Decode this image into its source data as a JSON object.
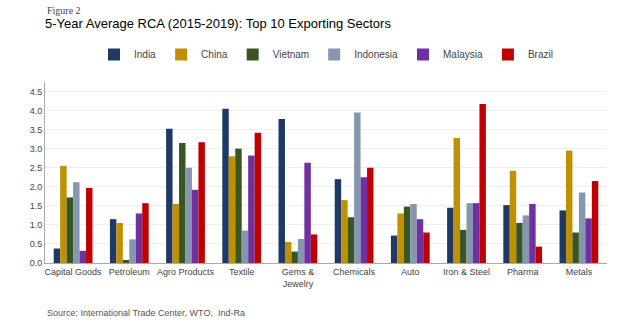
{
  "chart_data": {
    "type": "bar",
    "title": "5-Year Average RCA (2015-2019): Top 10 Exporting Sectors",
    "annotations": [
      "Figure 2",
      "Source: International Trade Center, WTO,  Ind-Ra"
    ],
    "categories": [
      "Capital Goods",
      "Petroleum",
      "Agro Products",
      "Textile",
      "Gems &\nJewelry",
      "Chemicals",
      "Auto",
      "Iron & Steel",
      "Pharma",
      "Metals"
    ],
    "series": [
      {
        "name": "India",
        "color": "#1F3864",
        "values": [
          0.38,
          1.15,
          3.52,
          4.05,
          3.78,
          2.2,
          0.72,
          1.45,
          1.52,
          1.38
        ]
      },
      {
        "name": "China",
        "color": "#BF9000",
        "values": [
          2.55,
          1.05,
          1.55,
          2.8,
          0.55,
          1.65,
          1.3,
          3.28,
          2.42,
          2.95
        ]
      },
      {
        "name": "Vietnam",
        "color": "#375623",
        "values": [
          1.72,
          0.08,
          3.15,
          3.0,
          0.3,
          1.2,
          1.48,
          0.87,
          1.05,
          0.8
        ]
      },
      {
        "name": "Indonesia",
        "color": "#8496B0",
        "values": [
          2.12,
          0.62,
          2.5,
          0.85,
          0.63,
          3.95,
          1.55,
          1.57,
          1.25,
          1.85
        ]
      },
      {
        "name": "Malaysia",
        "color": "#7030A0",
        "values": [
          0.32,
          1.3,
          1.92,
          2.82,
          2.63,
          2.25,
          1.15,
          1.57,
          1.55,
          1.17
        ]
      },
      {
        "name": "Brazil",
        "color": "#C00000",
        "values": [
          1.97,
          1.57,
          3.17,
          3.42,
          0.75,
          2.5,
          0.8,
          4.17,
          0.43,
          2.15
        ]
      }
    ],
    "ylim": [
      0,
      4.75
    ],
    "yticks": [
      {
        "value": 0.0,
        "label": "0.0"
      },
      0.5,
      {
        "value": 1.0,
        "label": "1.0"
      },
      1.5,
      {
        "value": 2.0,
        "label": "2.0"
      },
      2.5,
      {
        "value": 3.0,
        "label": "3.0"
      },
      3.5,
      {
        "value": 4.0,
        "label": "4.0"
      },
      4.5
    ],
    "grid": true,
    "legend": "top"
  }
}
